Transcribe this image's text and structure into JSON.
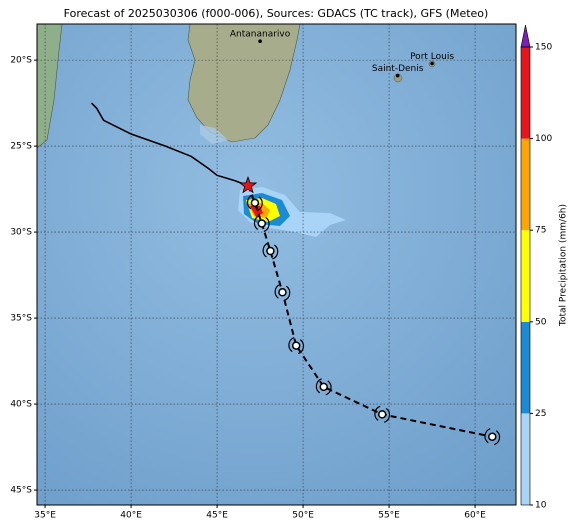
{
  "map": {
    "title": "Forecast of 2025030306 (f000-006), Sources: GDACS (TC track), GFS (Meteo)",
    "xlim": [
      34.53,
      62.38
    ],
    "ylim": [
      -45.87,
      -17.9
    ],
    "xticks": [
      {
        "value": 35,
        "label": "35°E"
      },
      {
        "value": 40,
        "label": "40°E"
      },
      {
        "value": 45,
        "label": "45°E"
      },
      {
        "value": 50,
        "label": "50°E"
      },
      {
        "value": 55,
        "label": "55°E"
      },
      {
        "value": 60,
        "label": "60°E"
      }
    ],
    "yticks": [
      {
        "value": -20,
        "label": "20°S"
      },
      {
        "value": -25,
        "label": "25°S"
      },
      {
        "value": -30,
        "label": "30°S"
      },
      {
        "value": -35,
        "label": "35°S"
      },
      {
        "value": -40,
        "label": "40°S"
      },
      {
        "value": -45,
        "label": "45°S"
      }
    ],
    "grid": true,
    "cities": [
      {
        "name": "Antananarivo",
        "lon": 47.5,
        "lat": -18.9
      },
      {
        "name": "Port Louis",
        "lon": 57.5,
        "lat": -20.2
      },
      {
        "name": "Saint-Denis",
        "lon": 55.5,
        "lat": -20.9
      }
    ],
    "past_track": {
      "lon": [
        37.7,
        38.0,
        38.4,
        40.0,
        42.0,
        43.5,
        44.5,
        45.0,
        46.0,
        46.8
      ],
      "lat": [
        -22.5,
        -22.8,
        -23.5,
        -24.3,
        -25.0,
        -25.6,
        -26.3,
        -26.7,
        -27.0,
        -27.3
      ],
      "color": "#000000"
    },
    "current_position": {
      "lon": 46.8,
      "lat": -27.3,
      "color": "#e8141c"
    },
    "forecast_track": {
      "lon": [
        47.2,
        47.6,
        48.1,
        48.8,
        49.6,
        51.2,
        54.6,
        61.0
      ],
      "lat": [
        -28.3,
        -29.5,
        -31.1,
        -33.5,
        -36.6,
        -39.0,
        -40.6,
        -41.9
      ],
      "color": "#000000"
    },
    "colorbar": {
      "label": "Total Precipitation (mm/6h)",
      "ticks": [
        10,
        25,
        50,
        75,
        100,
        150
      ],
      "colors": [
        "#a9d4f7",
        "#1b8bd8",
        "#ffff00",
        "#ffa500",
        "#e8141c"
      ],
      "extend_color": "#7a1fb8"
    }
  }
}
